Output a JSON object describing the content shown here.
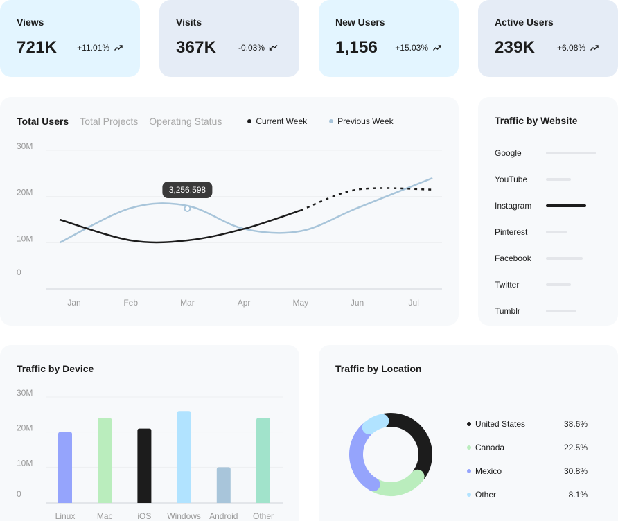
{
  "stats": [
    {
      "label": "Views",
      "value": "721K",
      "change": "+11.01%",
      "trend": "up",
      "bg": "#e3f5ff"
    },
    {
      "label": "Visits",
      "value": "367K",
      "change": "-0.03%",
      "trend": "down",
      "bg": "#e5ecf6"
    },
    {
      "label": "New Users",
      "value": "1,156",
      "change": "+15.03%",
      "trend": "up",
      "bg": "#e3f5ff"
    },
    {
      "label": "Active Users",
      "value": "239K",
      "change": "+6.08%",
      "trend": "up",
      "bg": "#e5ecf6"
    }
  ],
  "users_panel": {
    "tabs": [
      {
        "label": "Total Users",
        "active": true
      },
      {
        "label": "Total Projects",
        "active": false
      },
      {
        "label": "Operating Status",
        "active": false
      }
    ],
    "legend": [
      {
        "label": "Current Week",
        "color": "#1c1c1c"
      },
      {
        "label": "Previous Week",
        "color": "#a8c5da"
      }
    ],
    "tooltip": "3,256,598"
  },
  "website_panel": {
    "title": "Traffic by Website",
    "sites": [
      {
        "name": "Google",
        "value": 0.9,
        "highlight": false
      },
      {
        "name": "YouTube",
        "value": 0.45,
        "highlight": false
      },
      {
        "name": "Instagram",
        "value": 0.72,
        "highlight": true
      },
      {
        "name": "Pinterest",
        "value": 0.38,
        "highlight": false
      },
      {
        "name": "Facebook",
        "value": 0.66,
        "highlight": false
      },
      {
        "name": "Twitter",
        "value": 0.45,
        "highlight": false
      },
      {
        "name": "Tumblr",
        "value": 0.55,
        "highlight": false
      }
    ]
  },
  "device_panel": {
    "title": "Traffic by Device"
  },
  "location_panel": {
    "title": "Traffic by Location",
    "items": [
      {
        "name": "United States",
        "pct": "38.6%",
        "color": "#1c1c1c"
      },
      {
        "name": "Canada",
        "pct": "22.5%",
        "color": "#baedbd"
      },
      {
        "name": "Mexico",
        "pct": "30.8%",
        "color": "#95a4fc"
      },
      {
        "name": "Other",
        "pct": "8.1%",
        "color": "#b1e3ff"
      }
    ]
  },
  "chart_data": [
    {
      "type": "line",
      "title": "Total Users",
      "x": [
        "Jan",
        "Feb",
        "Mar",
        "Apr",
        "May",
        "Jun",
        "Jul"
      ],
      "y_ticks": [
        "0",
        "10M",
        "20M",
        "30M"
      ],
      "ylim": [
        0,
        30
      ],
      "series": [
        {
          "name": "Current Week",
          "values": [
            15,
            10.5,
            10.5,
            13,
            17,
            21.5,
            21.5
          ],
          "dashed_from_index": 4
        },
        {
          "name": "Previous Week",
          "values": [
            10,
            17.5,
            18,
            13,
            12.5,
            17.5,
            24
          ]
        }
      ],
      "tooltip_point": {
        "x": "Mar",
        "label": "3,256,598"
      },
      "grid": true
    },
    {
      "type": "bar",
      "title": "Traffic by Device",
      "categories": [
        "Linux",
        "Mac",
        "iOS",
        "Windows",
        "Android",
        "Other"
      ],
      "values": [
        20,
        24,
        21,
        26,
        10,
        24
      ],
      "colors": [
        "#95a4fc",
        "#baedbd",
        "#1c1c1c",
        "#b1e3ff",
        "#a8c5da",
        "#a1e3cb"
      ],
      "y_ticks": [
        "0",
        "10M",
        "20M",
        "30M"
      ],
      "ylim": [
        0,
        30
      ],
      "grid": true
    },
    {
      "type": "pie",
      "title": "Traffic by Location",
      "categories": [
        "United States",
        "Canada",
        "Mexico",
        "Other"
      ],
      "values": [
        38.6,
        22.5,
        30.8,
        8.1
      ]
    }
  ]
}
